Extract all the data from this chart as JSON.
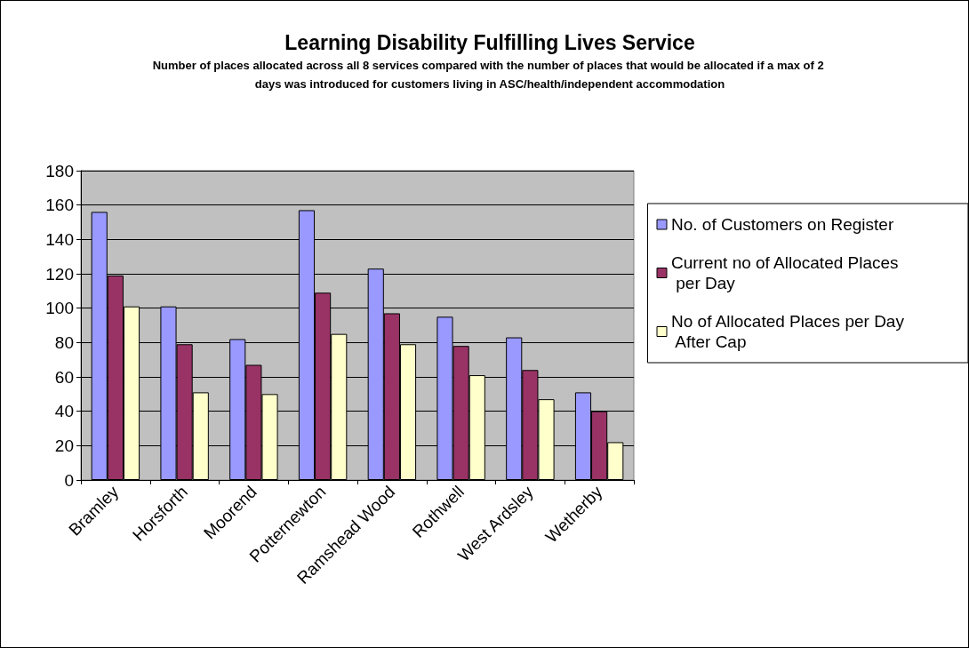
{
  "chart_data": {
    "type": "bar",
    "title": "Learning Disability Fulfilling Lives Service",
    "subtitle": "Number of places allocated across all 8 services compared with the number of places that would be allocated if a max of 2 days was introduced for customers living in ASC/health/independent accommodation",
    "categories": [
      "Bramley",
      "Horsforth",
      "Moorend",
      "Potternewton",
      "Ramshead Wood",
      "Rothwell",
      "West Ardsley",
      "Wetherby"
    ],
    "series": [
      {
        "name": "No. of Customers on Register",
        "color": "#9999ff",
        "values": [
          156,
          101,
          82,
          157,
          123,
          95,
          83,
          51
        ]
      },
      {
        "name": "Current no of Allocated Places per Day",
        "color": "#993366",
        "values": [
          119,
          79,
          67,
          109,
          97,
          78,
          64,
          40
        ]
      },
      {
        "name": "No of Allocated Places per Day After Cap",
        "color": "#ffffcc",
        "values": [
          101,
          51,
          50,
          85,
          79,
          61,
          47,
          22
        ]
      }
    ],
    "ylim": [
      0,
      180
    ],
    "yticks": [
      0,
      20,
      40,
      60,
      80,
      100,
      120,
      140,
      160,
      180
    ],
    "grid": "y",
    "legend": "right"
  }
}
